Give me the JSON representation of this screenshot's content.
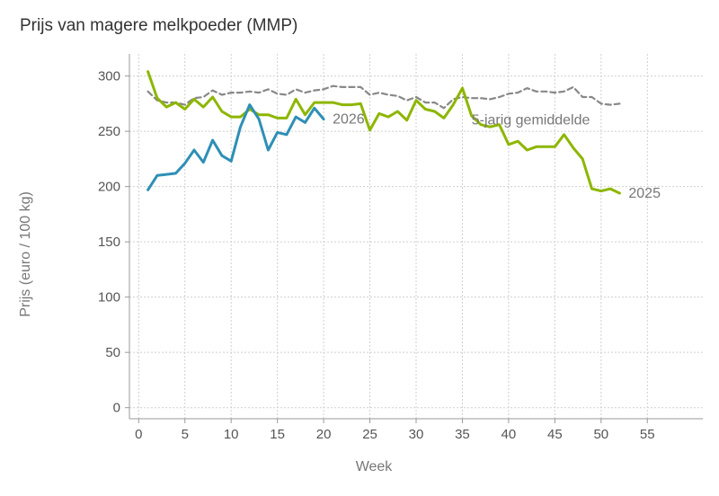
{
  "chart_data": {
    "type": "line",
    "title": "Prijs van magere melkpoeder (MMP)",
    "xlabel": "Week",
    "ylabel": "Prijs (euro / 100 kg)",
    "xlim": [
      -1,
      61
    ],
    "ylim": [
      -10,
      320
    ],
    "xticks": [
      0,
      5,
      10,
      15,
      20,
      25,
      30,
      35,
      40,
      45,
      50,
      55
    ],
    "yticks": [
      0,
      50,
      100,
      150,
      200,
      250,
      300
    ],
    "grid": true,
    "series": [
      {
        "name": "5-jarig gemiddelde",
        "color": "#888888",
        "dash": true,
        "x": [
          1,
          2,
          3,
          4,
          5,
          6,
          7,
          8,
          9,
          10,
          11,
          12,
          13,
          14,
          15,
          16,
          17,
          18,
          19,
          20,
          21,
          22,
          23,
          24,
          25,
          26,
          27,
          28,
          29,
          30,
          31,
          32,
          33,
          34,
          35,
          36,
          37,
          38,
          39,
          40,
          41,
          42,
          43,
          44,
          45,
          46,
          47,
          48,
          49,
          50,
          51,
          52
        ],
        "values": [
          286,
          278,
          276,
          276,
          274,
          280,
          281,
          287,
          283,
          285,
          285,
          286,
          285,
          288,
          284,
          283,
          288,
          285,
          287,
          288,
          291,
          290,
          290,
          290,
          283,
          285,
          283,
          282,
          278,
          281,
          276,
          276,
          271,
          279,
          281,
          280,
          280,
          279,
          281,
          284,
          285,
          289,
          286,
          286,
          285,
          286,
          290,
          281,
          281,
          275,
          274,
          275
        ]
      },
      {
        "name": "2025",
        "color": "#8db600",
        "dash": false,
        "x": [
          1,
          2,
          3,
          4,
          5,
          6,
          7,
          8,
          9,
          10,
          11,
          12,
          13,
          14,
          15,
          16,
          17,
          18,
          19,
          20,
          21,
          22,
          23,
          24,
          25,
          26,
          27,
          28,
          29,
          30,
          31,
          32,
          33,
          34,
          35,
          36,
          37,
          38,
          39,
          40,
          41,
          42,
          43,
          44,
          45,
          46,
          47,
          48,
          49,
          50,
          51,
          52
        ],
        "values": [
          304,
          280,
          272,
          276,
          270,
          279,
          272,
          281,
          268,
          263,
          263,
          270,
          265,
          265,
          262,
          262,
          279,
          265,
          276,
          276,
          276,
          274,
          274,
          275,
          251,
          266,
          263,
          268,
          260,
          278,
          270,
          268,
          262,
          274,
          289,
          264,
          256,
          254,
          256,
          238,
          241,
          233,
          236,
          236,
          236,
          247,
          235,
          225,
          198,
          196,
          198,
          194
        ]
      },
      {
        "name": "2026",
        "color": "#2e8fb5",
        "dash": false,
        "x": [
          1,
          2,
          3,
          4,
          5,
          6,
          7,
          8,
          9,
          10,
          11,
          12,
          13,
          14,
          15,
          16,
          17,
          18,
          19,
          20
        ],
        "values": [
          197,
          210,
          211,
          212,
          221,
          233,
          222,
          242,
          228,
          223,
          254,
          274,
          261,
          233,
          249,
          247,
          263,
          258,
          271,
          261
        ]
      }
    ]
  }
}
